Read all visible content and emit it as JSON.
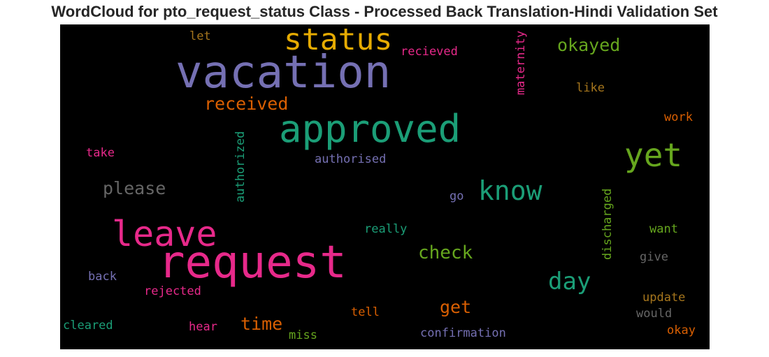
{
  "title": "WordCloud for pto_request_status Class - Processed Back Translation-Hindi Validation Set",
  "words": {
    "vacation": {
      "text": "vacation",
      "color": "#7570b3"
    },
    "request": {
      "text": "request",
      "color": "#e7298a"
    },
    "approved": {
      "text": "approved",
      "color": "#1b9e77"
    },
    "status": {
      "text": "status",
      "color": "#e6ab02"
    },
    "leave": {
      "text": "leave",
      "color": "#e7298a"
    },
    "yet": {
      "text": "yet",
      "color": "#66a61e"
    },
    "know": {
      "text": "know",
      "color": "#1b9e77"
    },
    "day": {
      "text": "day",
      "color": "#1b9e77"
    },
    "check": {
      "text": "check",
      "color": "#66a61e"
    },
    "okayed": {
      "text": "okayed",
      "color": "#66a61e"
    },
    "received": {
      "text": "received",
      "color": "#d95f02"
    },
    "please": {
      "text": "please",
      "color": "#666666"
    },
    "time": {
      "text": "time",
      "color": "#d95f02"
    },
    "get": {
      "text": "get",
      "color": "#d95f02"
    },
    "maternity": {
      "text": "maternity",
      "color": "#e7298a"
    },
    "authorized": {
      "text": "authorized",
      "color": "#1b9e77"
    },
    "discharged": {
      "text": "discharged",
      "color": "#66a61e"
    },
    "recieved": {
      "text": "recieved",
      "color": "#e7298a"
    },
    "let": {
      "text": "let",
      "color": "#a6761d"
    },
    "like": {
      "text": "like",
      "color": "#a6761d"
    },
    "work": {
      "text": "work",
      "color": "#d95f02"
    },
    "take": {
      "text": "take",
      "color": "#e7298a"
    },
    "authorised": {
      "text": "authorised",
      "color": "#7570b3"
    },
    "go": {
      "text": "go",
      "color": "#7570b3"
    },
    "really": {
      "text": "really",
      "color": "#1b9e77"
    },
    "want": {
      "text": "want",
      "color": "#66a61e"
    },
    "give": {
      "text": "give",
      "color": "#666666"
    },
    "back": {
      "text": "back",
      "color": "#7570b3"
    },
    "rejected": {
      "text": "rejected",
      "color": "#e7298a"
    },
    "update": {
      "text": "update",
      "color": "#a6761d"
    },
    "would": {
      "text": "would",
      "color": "#666666"
    },
    "tell": {
      "text": "tell",
      "color": "#d95f02"
    },
    "cleared": {
      "text": "cleared",
      "color": "#1b9e77"
    },
    "hear": {
      "text": "hear",
      "color": "#e7298a"
    },
    "miss": {
      "text": "miss",
      "color": "#66a61e"
    },
    "confirmation": {
      "text": "confirmation",
      "color": "#7570b3"
    },
    "okay": {
      "text": "okay",
      "color": "#d95f02"
    }
  }
}
